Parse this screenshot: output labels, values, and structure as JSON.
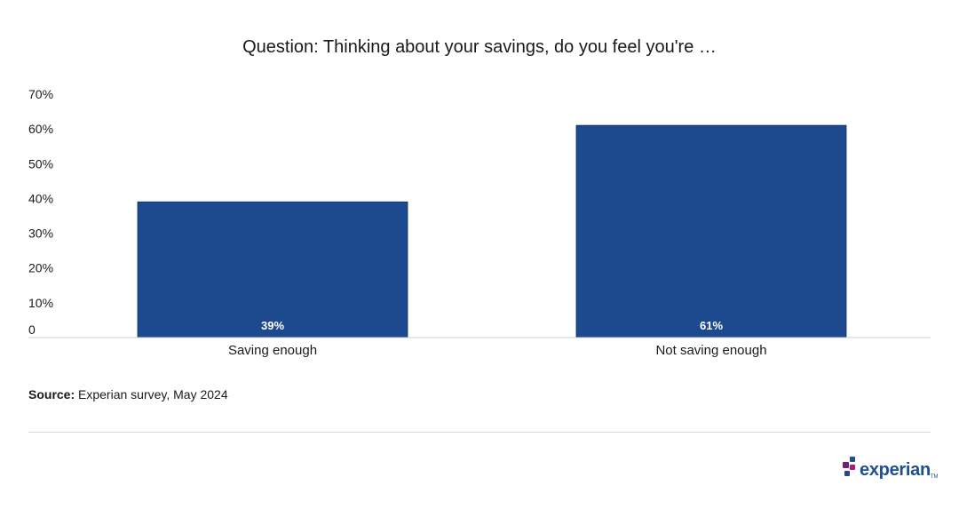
{
  "chart_data": {
    "type": "bar",
    "title": "Question: Thinking about your savings, do you feel you're …",
    "categories": [
      "Saving enough",
      "Not saving enough"
    ],
    "values": [
      39,
      61
    ],
    "value_labels": [
      "39%",
      "61%"
    ],
    "y_ticks": [
      "0",
      "10%",
      "20%",
      "30%",
      "40%",
      "50%",
      "60%",
      "70%"
    ],
    "ylim": [
      0,
      70
    ],
    "xlabel": "",
    "ylabel": "",
    "grid": false,
    "bar_color": "#1d4a8f"
  },
  "source": {
    "label": "Source:",
    "text": "Experian survey, May 2024"
  },
  "logo": {
    "text": "experian",
    "tm": "TM",
    "colors": [
      "#1d4f91",
      "#6d2077",
      "#af1685",
      "#26478d"
    ]
  }
}
